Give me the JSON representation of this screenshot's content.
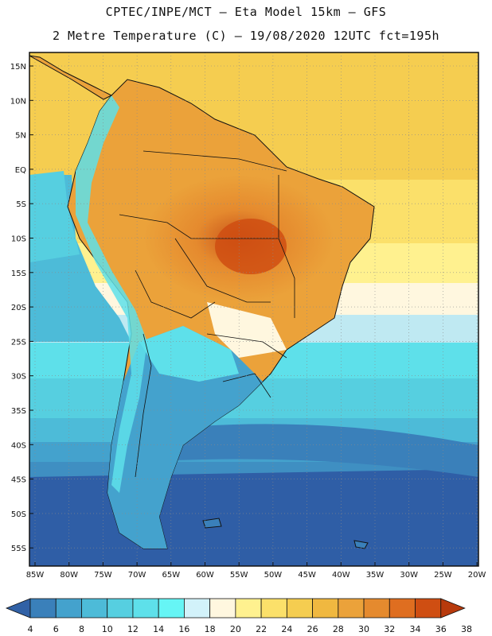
{
  "header": {
    "line1": "CPTEC/INPE/MCT –  Eta Model 15km – GFS",
    "line2": "2 Metre Temperature (C) – 19/08/2020 12UTC fct=195h"
  },
  "map": {
    "lat_labels": [
      "15N",
      "10N",
      "5N",
      "EQ",
      "5S",
      "10S",
      "15S",
      "20S",
      "25S",
      "30S",
      "35S",
      "40S",
      "45S",
      "50S",
      "55S"
    ],
    "lon_labels": [
      "85W",
      "80W",
      "75W",
      "70W",
      "65W",
      "60W",
      "55W",
      "50W",
      "45W",
      "40W",
      "35W",
      "30W",
      "25W",
      "20W"
    ]
  },
  "colorbar": {
    "labels": [
      "4",
      "6",
      "8",
      "10",
      "12",
      "14",
      "16",
      "18",
      "20",
      "22",
      "24",
      "26",
      "28",
      "30",
      "32",
      "34",
      "36",
      "38"
    ],
    "colors": [
      "#3161a6",
      "#3a80ba",
      "#44a2cd",
      "#4dbbd8",
      "#56cfe0",
      "#5ee0ea",
      "#66f5f5",
      "#d2f2fa",
      "#fff7df",
      "#fff18f",
      "#fbe06a",
      "#f5cd50",
      "#f0b840",
      "#eba23a",
      "#e58a2e",
      "#df6e20",
      "#cf4e12",
      "#b83a0c"
    ]
  }
}
